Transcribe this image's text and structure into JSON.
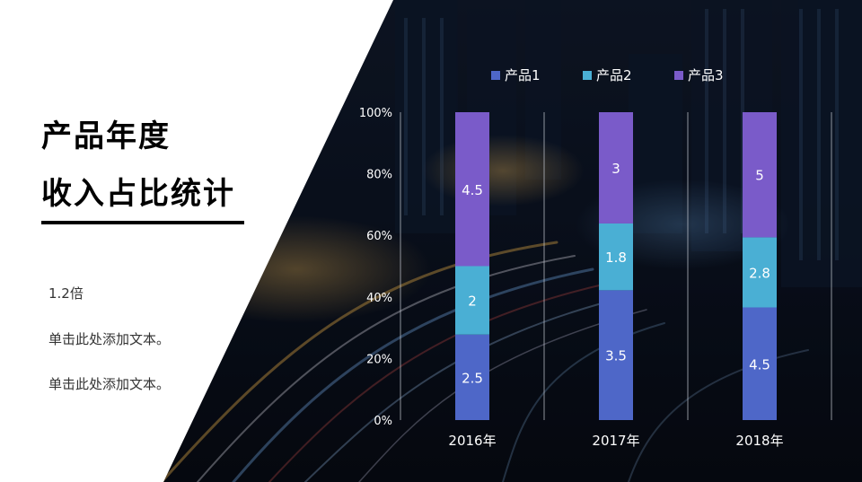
{
  "slide": {
    "title_line1": "产品年度",
    "title_line2": "收入占比统计",
    "notes": [
      "1.2倍",
      "单击此处添加文本。",
      "单击此处添加文本。"
    ]
  },
  "colors": {
    "series1": "#4e67c8",
    "series2": "#4aafd4",
    "series3": "#7a5bc9",
    "background_dark": "#0b1220",
    "panel": "#ffffff"
  },
  "chart_data": {
    "type": "bar",
    "stacked": "percent",
    "categories": [
      "2016年",
      "2017年",
      "2018年"
    ],
    "series": [
      {
        "name": "产品1",
        "values": [
          2.5,
          3.5,
          4.5
        ]
      },
      {
        "name": "产品2",
        "values": [
          2,
          1.8,
          2.8
        ]
      },
      {
        "name": "产品3",
        "values": [
          4.5,
          3,
          5
        ]
      }
    ],
    "yticks": [
      "0%",
      "20%",
      "40%",
      "60%",
      "80%",
      "100%"
    ],
    "ylim": [
      0,
      100
    ],
    "legend_position": "top",
    "grid": "vertical separators"
  }
}
